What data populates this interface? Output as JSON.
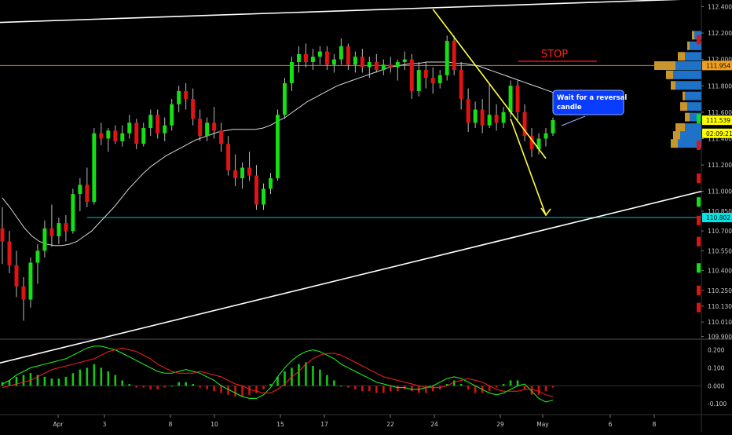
{
  "chart_data": [
    {
      "type": "candlestick",
      "title": "",
      "price_axis": {
        "ylim": [
          109.88,
          112.45
        ],
        "tick_labels": [
          "112.400",
          "112.200",
          "112.000",
          "111.800",
          "111.600",
          "111.400",
          "111.200",
          "111.000",
          "110.850",
          "110.700",
          "110.550",
          "110.400",
          "110.250",
          "110.130",
          "110.010",
          "109.900"
        ]
      },
      "time_axis": {
        "tick_labels": [
          "Apr",
          "3",
          "8",
          "10",
          "15",
          "17",
          "22",
          "24",
          "29",
          "May",
          "6",
          "8"
        ]
      },
      "price_tags": [
        {
          "label": "111.954",
          "value": 111.954,
          "color": "#f0a020"
        },
        {
          "label": "111.539",
          "value": 111.539,
          "color": "#ffff00"
        },
        {
          "label": "02:09:21",
          "value": 111.44,
          "color": "#ffff00"
        },
        {
          "label": "110.802",
          "value": 110.802,
          "color": "#00e5e5"
        }
      ],
      "horizontal_lines": [
        {
          "value": 111.954,
          "color": "#c8782a"
        },
        {
          "value": 110.802,
          "color": "#00c8c8"
        }
      ],
      "candles": [
        [
          110.72,
          110.88,
          110.45,
          110.62
        ],
        [
          110.62,
          110.7,
          110.38,
          110.44
        ],
        [
          110.44,
          110.55,
          110.2,
          110.28
        ],
        [
          110.28,
          110.35,
          110.02,
          110.18
        ],
        [
          110.18,
          110.5,
          110.12,
          110.46
        ],
        [
          110.46,
          110.6,
          110.3,
          110.55
        ],
        [
          110.55,
          110.78,
          110.5,
          110.72
        ],
        [
          110.72,
          110.9,
          110.58,
          110.66
        ],
        [
          110.66,
          110.8,
          110.6,
          110.76
        ],
        [
          110.76,
          110.82,
          110.62,
          110.7
        ],
        [
          110.7,
          111.02,
          110.68,
          110.98
        ],
        [
          110.98,
          111.1,
          110.85,
          111.05
        ],
        [
          111.05,
          111.18,
          110.88,
          110.92
        ],
        [
          110.92,
          111.48,
          110.9,
          111.44
        ],
        [
          111.44,
          111.52,
          111.35,
          111.4
        ],
        [
          111.4,
          111.48,
          111.3,
          111.46
        ],
        [
          111.46,
          111.5,
          111.36,
          111.38
        ],
        [
          111.38,
          111.5,
          111.34,
          111.44
        ],
        [
          111.44,
          111.58,
          111.4,
          111.52
        ],
        [
          111.52,
          111.55,
          111.32,
          111.36
        ],
        [
          111.36,
          111.52,
          111.34,
          111.48
        ],
        [
          111.48,
          111.62,
          111.42,
          111.58
        ],
        [
          111.58,
          111.62,
          111.4,
          111.44
        ],
        [
          111.44,
          111.56,
          111.38,
          111.5
        ],
        [
          111.5,
          111.7,
          111.46,
          111.66
        ],
        [
          111.66,
          111.8,
          111.6,
          111.76
        ],
        [
          111.76,
          111.82,
          111.62,
          111.7
        ],
        [
          111.7,
          111.78,
          111.5,
          111.55
        ],
        [
          111.55,
          111.62,
          111.38,
          111.42
        ],
        [
          111.42,
          111.56,
          111.38,
          111.52
        ],
        [
          111.52,
          111.64,
          111.4,
          111.46
        ],
        [
          111.46,
          111.52,
          111.3,
          111.36
        ],
        [
          111.36,
          111.42,
          111.12,
          111.16
        ],
        [
          111.16,
          111.28,
          111.04,
          111.1
        ],
        [
          111.1,
          111.22,
          111.02,
          111.18
        ],
        [
          111.18,
          111.3,
          111.08,
          111.12
        ],
        [
          111.12,
          111.2,
          110.86,
          110.9
        ],
        [
          110.9,
          111.06,
          110.86,
          111.02
        ],
        [
          111.02,
          111.14,
          110.98,
          111.1
        ],
        [
          111.1,
          111.62,
          111.08,
          111.58
        ],
        [
          111.58,
          111.86,
          111.55,
          111.82
        ],
        [
          111.82,
          112.02,
          111.76,
          111.98
        ],
        [
          111.98,
          112.1,
          111.9,
          112.04
        ],
        [
          112.04,
          112.12,
          111.94,
          111.98
        ],
        [
          111.98,
          112.08,
          111.92,
          112.02
        ],
        [
          112.02,
          112.1,
          111.96,
          112.06
        ],
        [
          112.06,
          112.1,
          111.92,
          111.96
        ],
        [
          111.96,
          112.04,
          111.9,
          112.0
        ],
        [
          112.0,
          112.16,
          111.96,
          112.1
        ],
        [
          112.1,
          112.12,
          111.92,
          111.96
        ],
        [
          111.96,
          112.06,
          111.9,
          112.02
        ],
        [
          112.02,
          112.08,
          111.9,
          111.94
        ],
        [
          111.94,
          112.02,
          111.86,
          111.98
        ],
        [
          111.98,
          112.04,
          111.9,
          111.92
        ],
        [
          111.92,
          112.0,
          111.88,
          111.96
        ],
        [
          111.96,
          112.02,
          111.9,
          111.94
        ],
        [
          111.94,
          112.0,
          111.84,
          111.98
        ],
        [
          111.98,
          112.06,
          111.92,
          112.0
        ],
        [
          112.0,
          112.04,
          111.7,
          111.76
        ],
        [
          111.76,
          111.98,
          111.72,
          111.92
        ],
        [
          111.92,
          111.98,
          111.78,
          111.86
        ],
        [
          111.86,
          111.94,
          111.74,
          111.82
        ],
        [
          111.82,
          111.92,
          111.78,
          111.88
        ],
        [
          111.88,
          112.18,
          111.84,
          112.14
        ],
        [
          112.14,
          112.18,
          111.88,
          111.92
        ],
        [
          111.92,
          111.98,
          111.62,
          111.7
        ],
        [
          111.7,
          111.78,
          111.45,
          111.52
        ],
        [
          111.52,
          111.68,
          111.48,
          111.62
        ],
        [
          111.62,
          111.7,
          111.44,
          111.5
        ],
        [
          111.5,
          111.82,
          111.48,
          111.58
        ],
        [
          111.58,
          111.66,
          111.46,
          111.52
        ],
        [
          111.52,
          111.64,
          111.48,
          111.6
        ],
        [
          111.6,
          111.84,
          111.56,
          111.8
        ],
        [
          111.8,
          111.84,
          111.54,
          111.6
        ],
        [
          111.6,
          111.66,
          111.38,
          111.42
        ],
        [
          111.42,
          111.48,
          111.26,
          111.32
        ],
        [
          111.32,
          111.44,
          111.28,
          111.4
        ],
        [
          111.4,
          111.48,
          111.34,
          111.44
        ],
        [
          111.44,
          111.56,
          111.42,
          111.54
        ]
      ],
      "moving_average": [
        110.95,
        110.88,
        110.8,
        110.72,
        110.66,
        110.62,
        110.6,
        110.59,
        110.59,
        110.6,
        110.62,
        110.66,
        110.7,
        110.76,
        110.82,
        110.88,
        110.95,
        111.02,
        111.08,
        111.14,
        111.19,
        111.23,
        111.27,
        111.3,
        111.33,
        111.36,
        111.39,
        111.41,
        111.43,
        111.45,
        111.46,
        111.47,
        111.47,
        111.47,
        111.47,
        111.48,
        111.5,
        111.53,
        111.56,
        111.6,
        111.64,
        111.68,
        111.71,
        111.74,
        111.77,
        111.8,
        111.82,
        111.84,
        111.86,
        111.88,
        111.9,
        111.92,
        111.94,
        111.95,
        111.96,
        111.97,
        111.97,
        111.98,
        111.98,
        111.98,
        111.98,
        111.97,
        111.97,
        111.96,
        111.95,
        111.93,
        111.91,
        111.89,
        111.87,
        111.85,
        111.83,
        111.81,
        111.79,
        111.77,
        111.75
      ],
      "annotations": [
        {
          "text": "STOP",
          "color": "#ff2020"
        },
        {
          "text": "Wait for a reversal candle",
          "color": "#ffffff",
          "background": "#0a3cff"
        }
      ],
      "trendlines": [
        {
          "name": "upper channel",
          "points": [
            [
              0,
              112.28
            ],
            [
              79,
              112.46
            ]
          ],
          "color": "#ffffff"
        },
        {
          "name": "lower channel",
          "points": [
            [
              0,
              109.7
            ],
            [
              79,
              111.0
            ]
          ],
          "color": "#ffffff"
        },
        {
          "name": "descending resistance",
          "points": [
            [
              61,
              112.38
            ],
            [
              77,
              111.25
            ]
          ],
          "color": "#ffff40"
        },
        {
          "name": "projected path",
          "points": [
            [
              72,
              111.55
            ],
            [
              77,
              110.82
            ]
          ],
          "color": "#ffff40"
        }
      ],
      "volume_profile": {
        "levels": [
          112.18,
          112.1,
          112.02,
          111.95,
          111.88,
          111.8,
          111.72,
          111.64,
          111.56,
          111.48,
          111.42,
          111.36
        ],
        "blue": [
          0.15,
          0.25,
          0.35,
          0.55,
          0.6,
          0.55,
          0.35,
          0.3,
          0.25,
          0.35,
          0.45,
          0.5
        ],
        "orange": [
          0.05,
          0.05,
          0.15,
          0.45,
          0.15,
          0.1,
          0.05,
          0.15,
          0.1,
          0.2,
          0.15,
          0.15
        ]
      }
    },
    {
      "type": "histogram+line",
      "title": "",
      "ylim": [
        -0.16,
        0.25
      ],
      "tick_labels": [
        "0.200",
        "0.100",
        "0.000",
        "-0.100"
      ],
      "histogram": [
        0.02,
        0.03,
        0.05,
        0.06,
        0.07,
        0.06,
        0.05,
        0.04,
        0.04,
        0.05,
        0.07,
        0.09,
        0.1,
        0.12,
        0.1,
        0.08,
        0.06,
        0.03,
        0.01,
        -0.01,
        -0.01,
        -0.02,
        -0.02,
        -0.01,
        0.0,
        0.02,
        0.02,
        0.01,
        -0.01,
        -0.02,
        -0.03,
        -0.04,
        -0.05,
        -0.06,
        -0.06,
        -0.05,
        -0.04,
        -0.02,
        0.01,
        0.05,
        0.08,
        0.1,
        0.12,
        0.13,
        0.11,
        0.09,
        0.06,
        0.03,
        0.0,
        -0.01,
        -0.02,
        -0.03,
        -0.03,
        -0.04,
        -0.04,
        -0.03,
        -0.03,
        -0.02,
        -0.03,
        -0.04,
        -0.04,
        -0.03,
        -0.02,
        0.01,
        0.03,
        0.01,
        -0.02,
        -0.04,
        -0.04,
        -0.03,
        -0.01,
        0.01,
        0.03,
        0.03,
        -0.02,
        -0.05,
        -0.05,
        -0.03,
        -0.01
      ],
      "series": [
        {
          "color": "#20ff20",
          "values": [
            0.01,
            0.03,
            0.06,
            0.08,
            0.1,
            0.11,
            0.12,
            0.13,
            0.14,
            0.15,
            0.17,
            0.19,
            0.21,
            0.22,
            0.22,
            0.21,
            0.2,
            0.18,
            0.16,
            0.14,
            0.12,
            0.1,
            0.08,
            0.07,
            0.07,
            0.08,
            0.09,
            0.08,
            0.07,
            0.05,
            0.03,
            0.0,
            -0.02,
            -0.04,
            -0.06,
            -0.07,
            -0.07,
            -0.05,
            -0.01,
            0.05,
            0.1,
            0.14,
            0.17,
            0.19,
            0.2,
            0.19,
            0.17,
            0.15,
            0.12,
            0.1,
            0.08,
            0.06,
            0.04,
            0.02,
            0.01,
            0.0,
            -0.01,
            -0.01,
            -0.02,
            -0.02,
            -0.01,
            0.0,
            0.02,
            0.04,
            0.05,
            0.04,
            0.02,
            0.0,
            -0.02,
            -0.04,
            -0.05,
            -0.04,
            -0.02,
            0.0,
            0.01,
            -0.03,
            -0.07,
            -0.09,
            -0.08
          ]
        },
        {
          "color": "#ff2020",
          "values": [
            -0.01,
            0.0,
            0.01,
            0.02,
            0.03,
            0.05,
            0.07,
            0.09,
            0.1,
            0.11,
            0.12,
            0.13,
            0.14,
            0.15,
            0.17,
            0.19,
            0.2,
            0.21,
            0.2,
            0.19,
            0.17,
            0.15,
            0.12,
            0.1,
            0.08,
            0.07,
            0.07,
            0.07,
            0.08,
            0.07,
            0.06,
            0.05,
            0.03,
            0.01,
            0.0,
            -0.02,
            -0.03,
            -0.04,
            -0.04,
            -0.02,
            0.01,
            0.05,
            0.08,
            0.12,
            0.15,
            0.17,
            0.18,
            0.18,
            0.17,
            0.15,
            0.13,
            0.11,
            0.09,
            0.07,
            0.05,
            0.04,
            0.03,
            0.02,
            0.01,
            0.0,
            -0.01,
            -0.01,
            -0.01,
            0.0,
            0.02,
            0.03,
            0.04,
            0.03,
            0.02,
            0.0,
            -0.02,
            -0.03,
            -0.03,
            -0.03,
            -0.02,
            -0.02,
            -0.03,
            -0.05,
            -0.06
          ]
        }
      ]
    }
  ]
}
